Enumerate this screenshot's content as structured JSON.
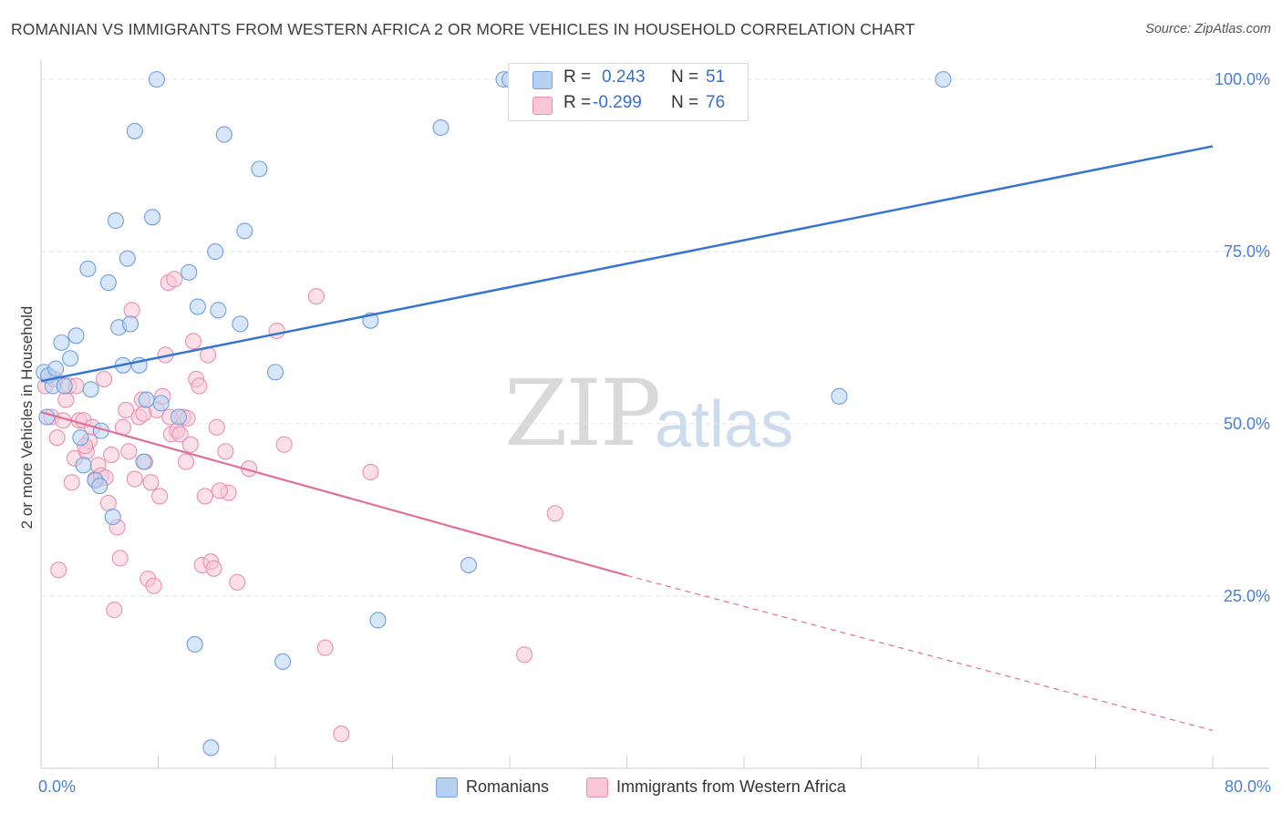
{
  "title": "ROMANIAN VS IMMIGRANTS FROM WESTERN AFRICA 2 OR MORE VEHICLES IN HOUSEHOLD CORRELATION CHART",
  "source": "Source: ZipAtlas.com",
  "watermark": {
    "zip": "ZIP",
    "atlas": "atlas"
  },
  "stats": {
    "r_label": "R =",
    "n_label": "N =",
    "rows": [
      {
        "r": "0.243",
        "n": "51"
      },
      {
        "r": "-0.299",
        "n": "76"
      }
    ]
  },
  "legend": {
    "romanians": "Romanians",
    "immigrants": "Immigrants from Western Africa"
  },
  "colors": {
    "blue_fill": "#b7d1f3",
    "blue_stroke": "#6f9fe0",
    "blue_line": "#3674d2",
    "pink_fill": "#f8c6d6",
    "pink_stroke": "#ea8fb0",
    "pink_line": "#e0709a",
    "axis_text": "#4a7fcf",
    "grid": "#e3e3e3"
  },
  "chart_data": {
    "type": "scatter",
    "title": "ROMANIAN VS IMMIGRANTS FROM WESTERN AFRICA 2 OR MORE VEHICLES IN HOUSEHOLD CORRELATION CHART",
    "xlabel": "",
    "ylabel": "2 or more Vehicles in Household",
    "xlim": [
      0,
      80
    ],
    "ylim": [
      0,
      102
    ],
    "x_tick_labels": {
      "min": "0.0%",
      "max": "80.0%"
    },
    "y_ticks": [
      25,
      50,
      75,
      100
    ],
    "y_tick_labels": [
      "25.0%",
      "50.0%",
      "75.0%",
      "100.0%"
    ],
    "grid": true,
    "legend_position": "bottom",
    "series": [
      {
        "name": "Romanians",
        "r": 0.243,
        "n": 51,
        "trend": {
          "x0": 0,
          "y0": 56.2,
          "x1": 80,
          "y1": 90.3
        },
        "points": [
          [
            0.2,
            57.5
          ],
          [
            0.4,
            51.0
          ],
          [
            0.5,
            57.0
          ],
          [
            0.8,
            55.5
          ],
          [
            1.0,
            58.0
          ],
          [
            1.4,
            61.8
          ],
          [
            1.6,
            55.5
          ],
          [
            2.0,
            59.5
          ],
          [
            2.4,
            62.8
          ],
          [
            2.7,
            48.0
          ],
          [
            2.9,
            44.0
          ],
          [
            3.2,
            72.5
          ],
          [
            3.4,
            55.0
          ],
          [
            3.7,
            41.8
          ],
          [
            4.0,
            41.0
          ],
          [
            4.1,
            49.0
          ],
          [
            4.6,
            70.5
          ],
          [
            4.9,
            36.5
          ],
          [
            5.1,
            79.5
          ],
          [
            5.3,
            64.0
          ],
          [
            5.6,
            58.5
          ],
          [
            5.9,
            74.0
          ],
          [
            6.1,
            64.5
          ],
          [
            6.4,
            92.5
          ],
          [
            6.7,
            58.5
          ],
          [
            7.0,
            44.5
          ],
          [
            7.2,
            53.5
          ],
          [
            7.6,
            80.0
          ],
          [
            7.9,
            100.0
          ],
          [
            8.2,
            53.0
          ],
          [
            9.4,
            51.0
          ],
          [
            10.1,
            72.0
          ],
          [
            10.5,
            18.0
          ],
          [
            10.7,
            67.0
          ],
          [
            11.6,
            3.0
          ],
          [
            11.9,
            75.0
          ],
          [
            12.1,
            66.5
          ],
          [
            12.5,
            92.0
          ],
          [
            13.6,
            64.5
          ],
          [
            13.9,
            78.0
          ],
          [
            14.9,
            87.0
          ],
          [
            16.0,
            57.5
          ],
          [
            16.5,
            15.5
          ],
          [
            22.5,
            65.0
          ],
          [
            23.0,
            21.5
          ],
          [
            27.3,
            93.0
          ],
          [
            29.2,
            29.5
          ],
          [
            31.6,
            100.0
          ],
          [
            32.0,
            100.0
          ],
          [
            54.5,
            54.0
          ],
          [
            61.6,
            100.0
          ]
        ]
      },
      {
        "name": "Immigrants from Western Africa",
        "r": -0.299,
        "n": 76,
        "trend": {
          "x0": 0,
          "y0": 51.7,
          "x1": 40,
          "y1": 28.0
        },
        "trend_extension": {
          "x0": 40,
          "y0": 28.0,
          "x1": 80,
          "y1": 5.5
        },
        "points": [
          [
            0.3,
            55.5
          ],
          [
            0.5,
            57.0
          ],
          [
            0.7,
            51.0
          ],
          [
            0.9,
            56.5
          ],
          [
            1.1,
            48.0
          ],
          [
            1.2,
            28.8
          ],
          [
            1.5,
            50.5
          ],
          [
            1.7,
            53.5
          ],
          [
            1.9,
            55.5
          ],
          [
            2.1,
            41.5
          ],
          [
            2.3,
            45.0
          ],
          [
            2.6,
            50.5
          ],
          [
            2.9,
            50.5
          ],
          [
            3.1,
            46.0
          ],
          [
            3.3,
            47.5
          ],
          [
            3.5,
            49.5
          ],
          [
            3.7,
            42.0
          ],
          [
            3.9,
            44.0
          ],
          [
            4.1,
            42.5
          ],
          [
            4.3,
            56.5
          ],
          [
            4.6,
            38.5
          ],
          [
            4.8,
            45.5
          ],
          [
            5.0,
            23.0
          ],
          [
            5.2,
            35.0
          ],
          [
            5.4,
            30.5
          ],
          [
            5.6,
            49.5
          ],
          [
            5.8,
            52.0
          ],
          [
            6.0,
            46.0
          ],
          [
            6.2,
            66.5
          ],
          [
            6.4,
            42.0
          ],
          [
            6.7,
            51.0
          ],
          [
            6.9,
            53.5
          ],
          [
            7.1,
            44.5
          ],
          [
            7.3,
            27.5
          ],
          [
            7.5,
            41.5
          ],
          [
            7.7,
            26.5
          ],
          [
            7.9,
            52.0
          ],
          [
            8.1,
            39.5
          ],
          [
            8.3,
            54.0
          ],
          [
            8.5,
            60.0
          ],
          [
            8.7,
            70.5
          ],
          [
            8.9,
            48.5
          ],
          [
            9.1,
            71.0
          ],
          [
            9.3,
            49.0
          ],
          [
            9.5,
            48.5
          ],
          [
            9.7,
            51.0
          ],
          [
            9.9,
            44.5
          ],
          [
            10.2,
            47.0
          ],
          [
            10.4,
            62.0
          ],
          [
            10.6,
            56.5
          ],
          [
            10.8,
            55.5
          ],
          [
            11.0,
            29.5
          ],
          [
            11.2,
            39.5
          ],
          [
            11.4,
            60.0
          ],
          [
            11.6,
            30.0
          ],
          [
            11.8,
            29.0
          ],
          [
            12.0,
            49.5
          ],
          [
            12.6,
            46.0
          ],
          [
            12.8,
            40.0
          ],
          [
            13.4,
            27.0
          ],
          [
            14.2,
            43.5
          ],
          [
            16.1,
            63.5
          ],
          [
            16.6,
            47.0
          ],
          [
            18.8,
            68.5
          ],
          [
            19.4,
            17.5
          ],
          [
            20.5,
            5.0
          ],
          [
            22.5,
            43.0
          ],
          [
            33.0,
            16.5
          ],
          [
            35.1,
            37.0
          ],
          [
            2.4,
            55.5
          ],
          [
            3.0,
            46.8
          ],
          [
            4.4,
            42.2
          ],
          [
            7.0,
            51.5
          ],
          [
            8.8,
            51.0
          ],
          [
            10.0,
            50.8
          ],
          [
            12.2,
            40.3
          ]
        ]
      }
    ]
  }
}
